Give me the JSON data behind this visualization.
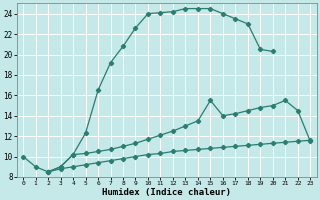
{
  "xlabel": "Humidex (Indice chaleur)",
  "bg_color": "#c5e8e8",
  "grid_color": "#ffffff",
  "line_color": "#2a7d70",
  "line1_x": [
    0,
    1,
    2,
    3,
    4,
    5,
    6,
    7,
    8,
    9,
    10,
    11,
    12,
    13,
    14,
    15,
    16,
    17,
    18,
    19,
    20
  ],
  "line1_y": [
    10.0,
    9.0,
    8.5,
    9.0,
    10.2,
    12.3,
    16.5,
    19.2,
    20.8,
    22.6,
    24.0,
    24.1,
    24.2,
    24.5,
    24.5,
    24.5,
    24.0,
    23.5,
    23.0,
    20.5,
    20.3
  ],
  "line2_x": [
    2,
    3,
    4,
    5,
    6,
    7,
    8,
    9,
    10,
    11,
    12,
    13,
    14,
    15,
    16,
    17,
    18,
    19,
    20,
    21,
    22,
    23
  ],
  "line2_y": [
    8.5,
    9.0,
    10.2,
    10.3,
    10.5,
    10.7,
    11.0,
    11.3,
    11.7,
    12.1,
    12.5,
    13.0,
    13.5,
    15.5,
    14.0,
    14.2,
    14.5,
    14.8,
    15.0,
    15.5,
    14.5,
    11.5
  ],
  "line3_x": [
    2,
    3,
    4,
    5,
    6,
    7,
    8,
    9,
    10,
    11,
    12,
    13,
    14,
    15,
    16,
    17,
    18,
    19,
    20,
    21,
    22,
    23
  ],
  "line3_y": [
    8.5,
    8.8,
    9.0,
    9.2,
    9.4,
    9.6,
    9.8,
    10.0,
    10.2,
    10.3,
    10.5,
    10.6,
    10.7,
    10.8,
    10.9,
    11.0,
    11.1,
    11.2,
    11.3,
    11.4,
    11.5,
    11.6
  ],
  "xlim": [
    -0.5,
    23.5
  ],
  "ylim": [
    8,
    25
  ],
  "yticks": [
    8,
    10,
    12,
    14,
    16,
    18,
    20,
    22,
    24
  ],
  "xticks": [
    0,
    1,
    2,
    3,
    4,
    5,
    6,
    7,
    8,
    9,
    10,
    11,
    12,
    13,
    14,
    15,
    16,
    17,
    18,
    19,
    20,
    21,
    22,
    23
  ]
}
